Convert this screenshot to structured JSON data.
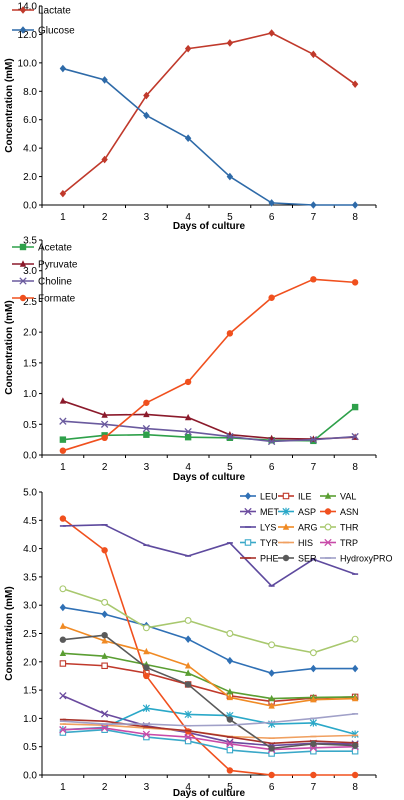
{
  "chart_data": [
    {
      "type": "line",
      "xlabel": "Days of culture",
      "ylabel": "Concentration (mM)",
      "x": [
        1,
        2,
        3,
        4,
        5,
        6,
        7,
        8
      ],
      "xticks": [
        "1",
        "2",
        "3",
        "4",
        "5",
        "6",
        "7",
        "8"
      ],
      "ylim": [
        0,
        14
      ],
      "yticks": [
        "0.0",
        "2.0",
        "4.0",
        "6.0",
        "8.0",
        "10.0",
        "12.0",
        "14.0"
      ],
      "legend_position": "top-left",
      "series": [
        {
          "name": "Lactate",
          "color": "#c0392b",
          "marker": "diamond",
          "values": [
            0.8,
            3.2,
            7.7,
            11.0,
            11.4,
            12.1,
            10.6,
            8.5
          ]
        },
        {
          "name": "Glucose",
          "color": "#2e6aa8",
          "marker": "diamond",
          "values": [
            9.6,
            8.8,
            6.3,
            4.7,
            2.0,
            0.15,
            0.0,
            0.0
          ]
        }
      ]
    },
    {
      "type": "line",
      "xlabel": "Days of culture",
      "ylabel": "Concentration (mM)",
      "x": [
        1,
        2,
        3,
        4,
        5,
        6,
        7,
        8
      ],
      "xticks": [
        "1",
        "2",
        "3",
        "4",
        "5",
        "6",
        "7",
        "8"
      ],
      "ylim": [
        0,
        3.5
      ],
      "yticks": [
        "0.0",
        "0.5",
        "1.0",
        "1.5",
        "2.0",
        "2.5",
        "3.0",
        "3.5"
      ],
      "legend_position": "top-left",
      "series": [
        {
          "name": "Acetate",
          "color": "#2ea04a",
          "marker": "square",
          "values": [
            0.25,
            0.32,
            0.33,
            0.29,
            0.28,
            0.24,
            0.23,
            0.78
          ]
        },
        {
          "name": "Pyruvate",
          "color": "#8b1a2b",
          "marker": "triangle",
          "values": [
            0.88,
            0.65,
            0.66,
            0.61,
            0.33,
            0.27,
            0.26,
            0.29
          ]
        },
        {
          "name": "Choline",
          "color": "#6a5a9e",
          "marker": "x",
          "values": [
            0.55,
            0.5,
            0.43,
            0.38,
            0.3,
            0.22,
            0.25,
            0.3
          ]
        },
        {
          "name": "Formate",
          "color": "#f0501e",
          "marker": "circle",
          "values": [
            0.07,
            0.28,
            0.85,
            1.19,
            1.98,
            2.56,
            2.86,
            2.81
          ]
        }
      ]
    },
    {
      "type": "line",
      "xlabel": "Days of culture",
      "ylabel": "Concentration (mM)",
      "x": [
        1,
        2,
        3,
        4,
        5,
        6,
        7,
        8
      ],
      "xticks": [
        "1",
        "2",
        "3",
        "4",
        "5",
        "6",
        "7",
        "8"
      ],
      "ylim": [
        0,
        5
      ],
      "yticks": [
        "0.0",
        "0.5",
        "1.0",
        "1.5",
        "2.0",
        "2.5",
        "3.0",
        "3.5",
        "4.0",
        "4.5",
        "5.0"
      ],
      "legend_position": "top-right",
      "series": [
        {
          "name": "LEU",
          "color": "#2f70b5",
          "marker": "diamond",
          "values": [
            2.96,
            2.84,
            2.64,
            2.4,
            2.02,
            1.8,
            1.88,
            1.88
          ]
        },
        {
          "name": "ILE",
          "color": "#c0392b",
          "marker": "square-open",
          "values": [
            1.97,
            1.93,
            1.8,
            1.6,
            1.4,
            1.3,
            1.36,
            1.38
          ]
        },
        {
          "name": "VAL",
          "color": "#5a9e32",
          "marker": "triangle",
          "values": [
            2.15,
            2.1,
            1.95,
            1.8,
            1.47,
            1.35,
            1.37,
            1.38
          ]
        },
        {
          "name": "MET",
          "color": "#6a4a9e",
          "marker": "x",
          "values": [
            1.4,
            1.08,
            0.87,
            0.75,
            0.58,
            0.52,
            0.56,
            0.55
          ]
        },
        {
          "name": "ASP",
          "color": "#2aa8c8",
          "marker": "star",
          "values": [
            0.8,
            0.84,
            1.18,
            1.07,
            1.05,
            0.9,
            0.92,
            0.72
          ]
        },
        {
          "name": "ASN",
          "color": "#f0501e",
          "marker": "circle",
          "values": [
            4.53,
            3.97,
            1.75,
            0.77,
            0.08,
            0.0,
            0.0,
            0.0
          ]
        },
        {
          "name": "LYS",
          "color": "#5e4a9e",
          "marker": "bar",
          "values": [
            4.4,
            4.42,
            4.06,
            3.87,
            4.1,
            3.34,
            3.81,
            3.55
          ]
        },
        {
          "name": "ARG",
          "color": "#f08a24",
          "marker": "triangle",
          "values": [
            2.63,
            2.37,
            2.18,
            1.93,
            1.37,
            1.22,
            1.33,
            1.35
          ]
        },
        {
          "name": "THR",
          "color": "#a8c86e",
          "marker": "circle-open",
          "values": [
            3.29,
            3.05,
            2.6,
            2.73,
            2.5,
            2.3,
            2.16,
            2.4
          ]
        },
        {
          "name": "TYR",
          "color": "#3aa8c8",
          "marker": "square-open",
          "values": [
            0.75,
            0.8,
            0.67,
            0.6,
            0.44,
            0.38,
            0.42,
            0.42
          ]
        },
        {
          "name": "HIS",
          "color": "#f0a060",
          "marker": "bar",
          "values": [
            0.9,
            0.88,
            0.83,
            0.78,
            0.68,
            0.65,
            0.68,
            0.7
          ]
        },
        {
          "name": "TRP",
          "color": "#c84aa8",
          "marker": "x",
          "values": [
            0.8,
            0.83,
            0.72,
            0.67,
            0.55,
            0.45,
            0.48,
            0.5
          ]
        },
        {
          "name": "PHE",
          "color": "#a8322a",
          "marker": "bar",
          "values": [
            0.98,
            0.95,
            0.85,
            0.78,
            0.67,
            0.56,
            0.6,
            0.57
          ]
        },
        {
          "name": "SER",
          "color": "#5a5a5a",
          "marker": "circle",
          "values": [
            2.39,
            2.47,
            1.9,
            1.6,
            0.98,
            0.47,
            0.55,
            0.52
          ]
        },
        {
          "name": "HydroxyPRO",
          "color": "#a0a0c8",
          "marker": "bar",
          "values": [
            0.95,
            0.9,
            0.9,
            0.87,
            0.88,
            0.93,
            1.0,
            1.08
          ]
        }
      ]
    }
  ]
}
